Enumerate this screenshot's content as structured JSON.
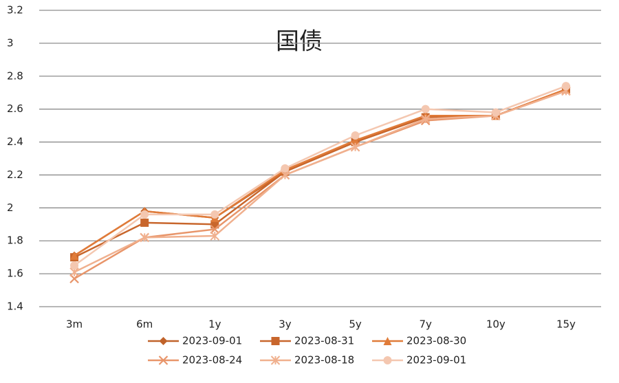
{
  "chart_data": {
    "type": "line",
    "title": "国债",
    "categories": [
      "3m",
      "6m",
      "1y",
      "3y",
      "5y",
      "7y",
      "10y",
      "15y"
    ],
    "series": [
      {
        "name": "2023-09-01",
        "color": "#c0622a",
        "marker": "diamond",
        "values": [
          1.71,
          1.98,
          1.94,
          2.22,
          2.4,
          2.56,
          2.56,
          2.72
        ]
      },
      {
        "name": "2023-08-31",
        "color": "#c8662c",
        "marker": "square",
        "values": [
          1.7,
          1.91,
          1.9,
          2.22,
          2.4,
          2.55,
          2.56,
          2.72
        ]
      },
      {
        "name": "2023-08-30",
        "color": "#e07b39",
        "marker": "triangle",
        "values": [
          1.71,
          1.98,
          1.94,
          2.23,
          2.41,
          2.56,
          2.56,
          2.72
        ]
      },
      {
        "name": "2023-08-24",
        "color": "#e8956a",
        "marker": "x",
        "values": [
          1.57,
          1.82,
          1.87,
          2.2,
          2.37,
          2.53,
          2.56,
          2.71
        ]
      },
      {
        "name": "2023-08-18",
        "color": "#f0b08e",
        "marker": "star",
        "values": [
          1.61,
          1.82,
          1.83,
          2.2,
          2.37,
          2.54,
          2.56,
          2.71
        ]
      },
      {
        "name": "2023-09-01",
        "color": "#f4c7b0",
        "marker": "circle",
        "values": [
          1.65,
          1.96,
          1.96,
          2.24,
          2.44,
          2.6,
          2.58,
          2.74
        ]
      }
    ],
    "ylim": [
      1.4,
      3.2
    ],
    "yticks": [
      1.4,
      1.6,
      1.8,
      2,
      2.2,
      2.4,
      2.6,
      2.8,
      3,
      3.2
    ],
    "grid": true
  }
}
